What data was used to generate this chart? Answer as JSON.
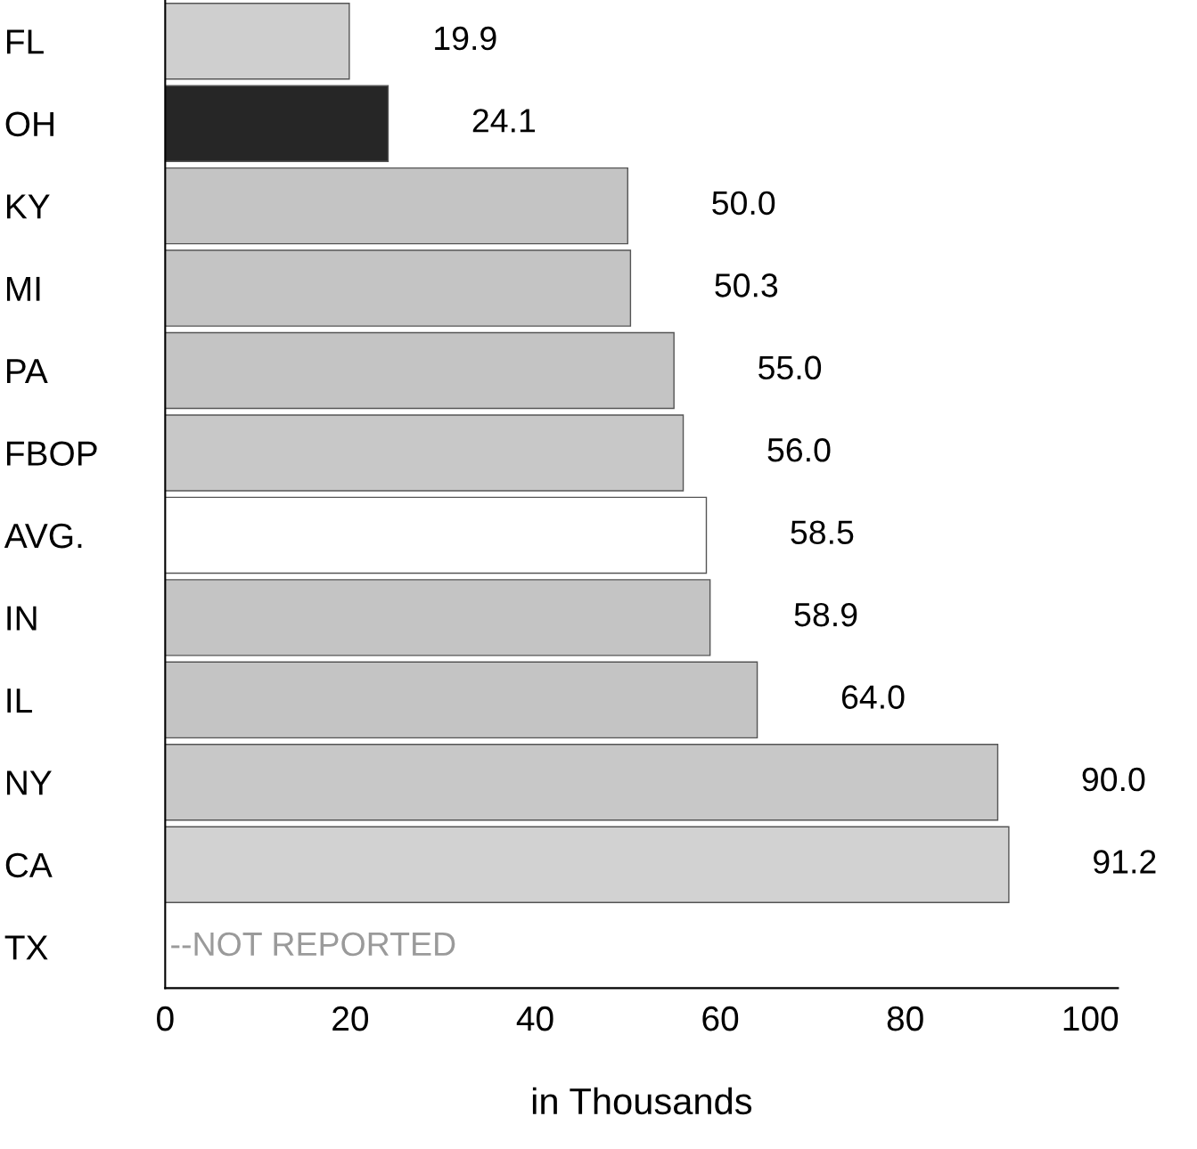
{
  "chart_data": {
    "type": "bar",
    "orientation": "horizontal",
    "xlabel": "in Thousands",
    "categories": [
      "FL",
      "OH",
      "KY",
      "MI",
      "PA",
      "FBOP",
      "AVG.",
      "IN",
      "IL",
      "NY",
      "CA",
      "TX"
    ],
    "values": [
      19.9,
      24.1,
      50.0,
      50.3,
      55.0,
      56.0,
      58.5,
      58.9,
      64.0,
      90.0,
      91.2,
      null
    ],
    "value_labels": [
      "19.9",
      "24.1",
      "50.0",
      "50.3",
      "55.0",
      "56.0",
      "58.5",
      "58.9",
      "64.0",
      "90.0",
      "91.2",
      "--NOT REPORTED"
    ],
    "colors": [
      "#cfcfcf",
      "#262626",
      "#c4c4c4",
      "#c4c4c4",
      "#c4c4c4",
      "#c8c8c8",
      "#ffffff",
      "#c4c4c4",
      "#c4c4c4",
      "#c8c8c8",
      "#d2d2d2",
      "#c4c4c4"
    ],
    "xlim": [
      0,
      103
    ],
    "xticks": [
      0,
      20,
      40,
      60,
      80,
      100
    ],
    "grid": false,
    "legend": false
  }
}
